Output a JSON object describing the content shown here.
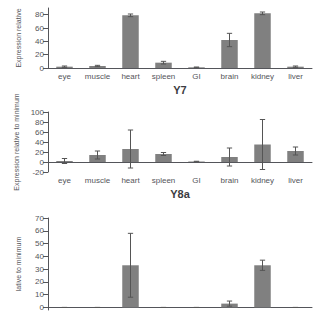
{
  "chart_data": [
    {
      "type": "bar",
      "title": "Y7",
      "ylabel": "Expression relative",
      "categories": [
        "eye",
        "muscle",
        "heart",
        "spleen",
        "GI",
        "brain",
        "kidney",
        "liver"
      ],
      "values": [
        2,
        3,
        79,
        8,
        1,
        42,
        82,
        2
      ],
      "errors": [
        1,
        1,
        2,
        2,
        0.5,
        10,
        2,
        1
      ],
      "color": "#808080",
      "ylim": [
        0,
        90
      ],
      "yticks": [
        0,
        20,
        40,
        60,
        80
      ],
      "grid": false
    },
    {
      "type": "bar",
      "title": "Y8a",
      "ylabel": "Expression relative to minimum",
      "categories": [
        "eye",
        "muscle",
        "heart",
        "spleen",
        "GI",
        "brain",
        "kidney",
        "liver"
      ],
      "values": [
        2,
        14,
        26,
        16,
        1,
        10,
        35,
        22
      ],
      "errors": [
        5,
        8,
        38,
        3,
        0.5,
        18,
        50,
        8
      ],
      "color": "#808080",
      "ylim": [
        -20,
        100
      ],
      "yticks": [
        -20,
        0,
        20,
        40,
        60,
        80,
        100
      ],
      "grid": false
    },
    {
      "type": "bar",
      "ylabel": "lative to minimum",
      "categories": [
        null,
        null,
        null,
        null,
        null,
        null,
        null,
        null
      ],
      "values": [
        0,
        0,
        33,
        0,
        0,
        3,
        33,
        0
      ],
      "errors": [
        0,
        0,
        25,
        0,
        0,
        2,
        4,
        0
      ],
      "color": "#808080",
      "ylim": [
        -2,
        70
      ],
      "yticks": [
        0,
        10,
        20,
        30,
        40,
        50,
        60,
        70
      ],
      "grid": false
    }
  ]
}
